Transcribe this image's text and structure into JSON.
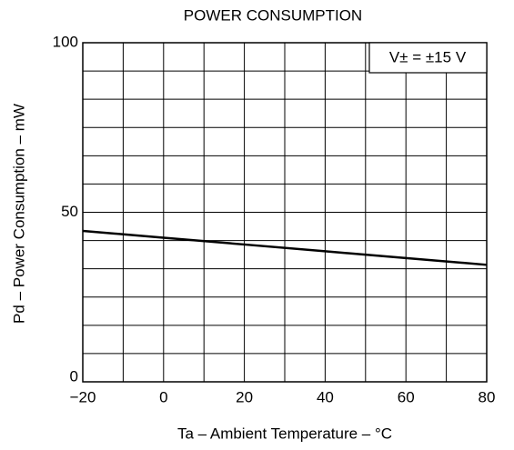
{
  "chart_data": {
    "type": "line",
    "title": "POWER CONSUMPTION",
    "x_label": "Ta – Ambient Temperature – °C",
    "y_label": "Pd – Power Consumption – mW",
    "annotation": "V± = ±15 V",
    "x": [
      -20,
      0,
      20,
      40,
      60,
      80
    ],
    "series": [
      {
        "name": "Pd",
        "color": "#000000",
        "values": [
          44.5,
          42.5,
          40.5,
          38.5,
          36.5,
          34.5
        ]
      }
    ],
    "xlim": [
      -20,
      80
    ],
    "ylim": [
      0,
      100
    ],
    "xticks": [
      {
        "value": -20,
        "label": "−20"
      },
      0,
      20,
      40,
      60,
      80
    ],
    "yticks": [
      0,
      50,
      100
    ],
    "xgrid": [
      -20,
      -10,
      0,
      10,
      20,
      30,
      40,
      50,
      60,
      70,
      80
    ],
    "ygrid": [
      0,
      8.33,
      16.67,
      25,
      33.33,
      41.67,
      50,
      58.33,
      66.67,
      75,
      83.33,
      91.67,
      100
    ],
    "grid": true
  }
}
